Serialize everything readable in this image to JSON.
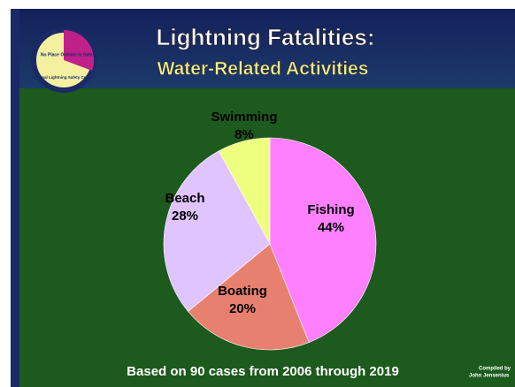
{
  "chart_data": {
    "type": "pie",
    "title": "Lightning Fatalities:",
    "subtitle": "Water-Related Activities",
    "categories": [
      "Fishing",
      "Boating",
      "Beach",
      "Swimming"
    ],
    "values": [
      44,
      20,
      28,
      8
    ],
    "value_labels": [
      "44%",
      "20%",
      "28%",
      "8%"
    ],
    "colors": [
      "#ff80ff",
      "#e8806f",
      "#e0c4ff",
      "#eeff80"
    ],
    "footnote": "Based on 90 cases from 2006 through 2019",
    "credit": [
      "Compiled by",
      "John Jensenius"
    ],
    "logo": {
      "name": "National Lightning Safety Council",
      "slogan": "No Place Outside Is Safe!"
    }
  }
}
